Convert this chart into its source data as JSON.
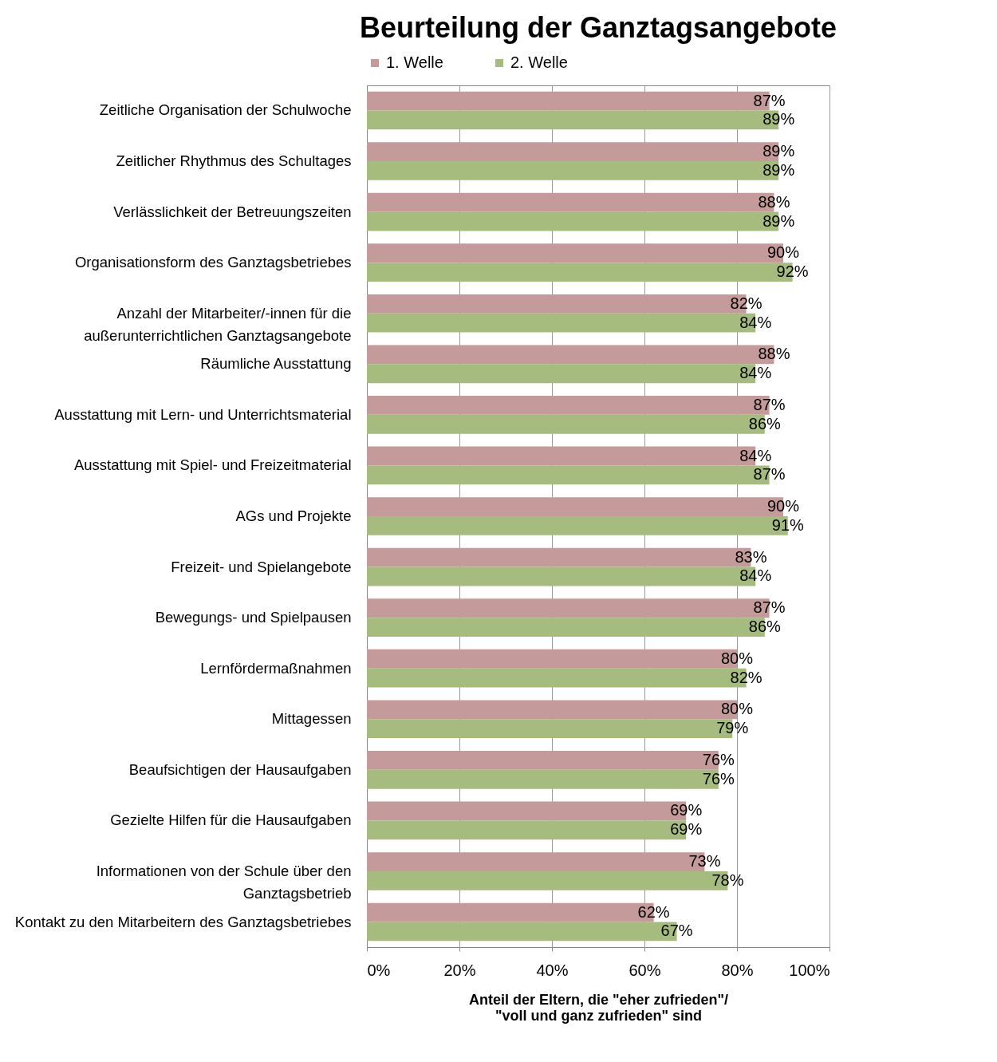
{
  "chart_data": {
    "type": "bar",
    "orientation": "horizontal",
    "title": "Beurteilung der Ganztagsangebote",
    "xlabel": "Anteil der Eltern, die \"eher zufrieden\"/ \"voll und ganz zufrieden\" sind",
    "categories": [
      "Zeitliche Organisation der Schulwoche",
      "Zeitlicher Rhythmus des Schultages",
      "Verlässlichkeit der Betreuungszeiten",
      "Organisationsform des Ganztagsbetriebes",
      "Anzahl der Mitarbeiter/-innen für die außerunterrichtlichen Ganztagsangebote",
      "Räumliche Ausstattung",
      "Ausstattung mit Lern- und Unterrichtsmaterial",
      "Ausstattung mit Spiel- und Freizeitmaterial",
      "AGs und Projekte",
      "Freizeit- und Spielangebote",
      "Bewegungs- und Spielpausen",
      "Lernfördermaßnahmen",
      "Mittagessen",
      "Beaufsichtigen der Hausaufgaben",
      "Gezielte Hilfen für die Hausaufgaben",
      "Informationen von der Schule über den Ganztagsbetrieb",
      "Kontakt zu den Mitarbeitern des Ganztagsbetriebes"
    ],
    "series": [
      {
        "name": "1. Welle",
        "color": "#c49a9a",
        "values": [
          87,
          89,
          88,
          90,
          82,
          88,
          87,
          84,
          90,
          83,
          87,
          80,
          80,
          76,
          69,
          73,
          62
        ],
        "value_labels": [
          "87%",
          "89%",
          "88%",
          "90%",
          "82%",
          "88%",
          "87%",
          "84%",
          "90%",
          "83%",
          "87%",
          "80%",
          "80%",
          "76%",
          "69%",
          "73%",
          "62%"
        ]
      },
      {
        "name": "2. Welle",
        "color": "#a6bb7e",
        "values": [
          89,
          89,
          89,
          92,
          84,
          84,
          86,
          87,
          91,
          84,
          86,
          82,
          79,
          76,
          69,
          78,
          67
        ],
        "value_labels": [
          "89%",
          "89%",
          "89%",
          "92%",
          "84%",
          "84%",
          "86%",
          "87%",
          "91%",
          "84%",
          "86%",
          "82%",
          "79%",
          "76%",
          "69%",
          "78%",
          "67%"
        ]
      }
    ],
    "xlim": [
      0,
      100
    ],
    "xticks": [
      {
        "value": 0,
        "label": "0%"
      },
      {
        "value": 20,
        "label": "20%"
      },
      {
        "value": 40,
        "label": "40%"
      },
      {
        "value": 60,
        "label": "60%"
      },
      {
        "value": 80,
        "label": "80%"
      },
      {
        "value": 100,
        "label": "100%"
      }
    ],
    "grid": "x",
    "legend": "top"
  }
}
